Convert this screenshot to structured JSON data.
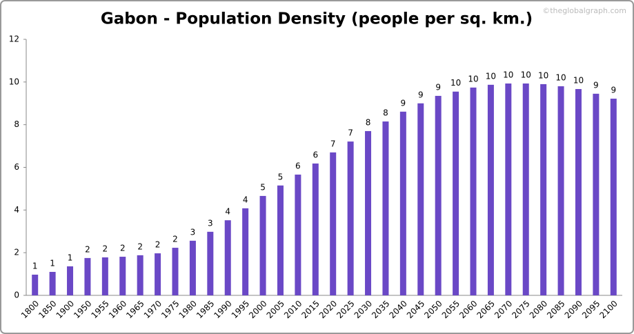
{
  "chart_data": {
    "type": "bar",
    "title": "Gabon - Population Density (people per sq. km.)",
    "watermark": "©theglobalgraph.com",
    "categories": [
      "1800",
      "1850",
      "1900",
      "1950",
      "1955",
      "1960",
      "1965",
      "1970",
      "1975",
      "1980",
      "1985",
      "1990",
      "1995",
      "2000",
      "2005",
      "2010",
      "2015",
      "2020",
      "2025",
      "2030",
      "2035",
      "2040",
      "2045",
      "2050",
      "2055",
      "2060",
      "2065",
      "2070",
      "2075",
      "2080",
      "2085",
      "2090",
      "2095",
      "2100"
    ],
    "values": [
      0.97,
      1.1,
      1.36,
      1.75,
      1.78,
      1.81,
      1.88,
      1.97,
      2.23,
      2.56,
      2.98,
      3.52,
      4.08,
      4.66,
      5.15,
      5.66,
      6.18,
      6.7,
      7.21,
      7.7,
      8.15,
      8.61,
      9.0,
      9.35,
      9.55,
      9.74,
      9.87,
      9.93,
      9.93,
      9.9,
      9.8,
      9.67,
      9.45,
      9.22
    ],
    "value_labels": [
      "1",
      "1",
      "1",
      "2",
      "2",
      "2",
      "2",
      "2",
      "2",
      "3",
      "3",
      "4",
      "4",
      "5",
      "5",
      "6",
      "6",
      "7",
      "7",
      "8",
      "8",
      "9",
      "9",
      "9",
      "10",
      "10",
      "10",
      "10",
      "10",
      "10",
      "10",
      "10",
      "9",
      "9"
    ],
    "color": "#6a48c6",
    "ylim": [
      0,
      12
    ],
    "yticks": [
      0,
      2,
      4,
      6,
      8,
      10,
      12
    ],
    "grid": false
  }
}
